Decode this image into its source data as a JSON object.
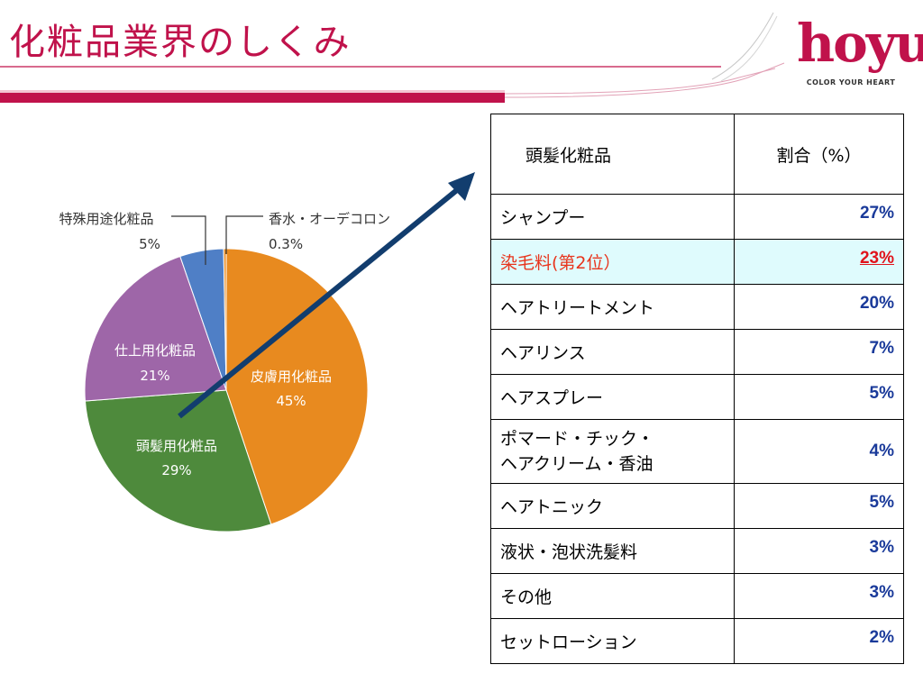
{
  "slide": {
    "title": "化粧品業界のしくみ",
    "accent_color": "#c0124b"
  },
  "logo": {
    "wordmark": "hoyu",
    "tagline": "COLOR YOUR HEART"
  },
  "chart_data": [
    {
      "type": "pie",
      "slices": [
        {
          "label": "皮膚用化粧品",
          "value": 45,
          "display": "45%",
          "color": "#e88a1f"
        },
        {
          "label": "頭髪用化粧品",
          "value": 29,
          "display": "29%",
          "color": "#4e8a3c"
        },
        {
          "label": "仕上用化粧品",
          "value": 21,
          "display": "21%",
          "color": "#9e66a8"
        },
        {
          "label": "特殊用途化粧品",
          "value": 5,
          "display": "5%",
          "color": "#4f7fc6"
        },
        {
          "label": "香水・オーデコロン",
          "value": 0.3,
          "display": "0.3%",
          "color": "#e88a1f"
        }
      ]
    },
    {
      "type": "table",
      "headers": [
        "頭髪化粧品",
        "割合（%）"
      ],
      "rows": [
        {
          "category": "シャンプー",
          "share": 27,
          "display": "27%"
        },
        {
          "category": "染毛料(第2位）",
          "share": 23,
          "display": "23%",
          "highlight": true
        },
        {
          "category": "ヘアトリートメント",
          "share": 20,
          "display": "20%"
        },
        {
          "category": "ヘアリンス",
          "share": 7,
          "display": "7%"
        },
        {
          "category": "ヘアスプレー",
          "share": 5,
          "display": "5%"
        },
        {
          "category_lines": [
            "ポマード・チック・",
            "ヘアクリーム・香油"
          ],
          "share": 4,
          "display": "4%"
        },
        {
          "category": "ヘアトニック",
          "share": 5,
          "display": "5%"
        },
        {
          "category": "液状・泡状洗髪料",
          "share": 3,
          "display": "3%"
        },
        {
          "category": "その他",
          "share": 3,
          "display": "3%"
        },
        {
          "category": "セットローション",
          "share": 2,
          "display": "2%"
        }
      ]
    }
  ],
  "colors": {
    "arrow": "#123d6e",
    "table_highlight_bg": "#dffbfd",
    "table_highlight_text": "#e8341c",
    "table_value_text": "#1a3a9a"
  }
}
